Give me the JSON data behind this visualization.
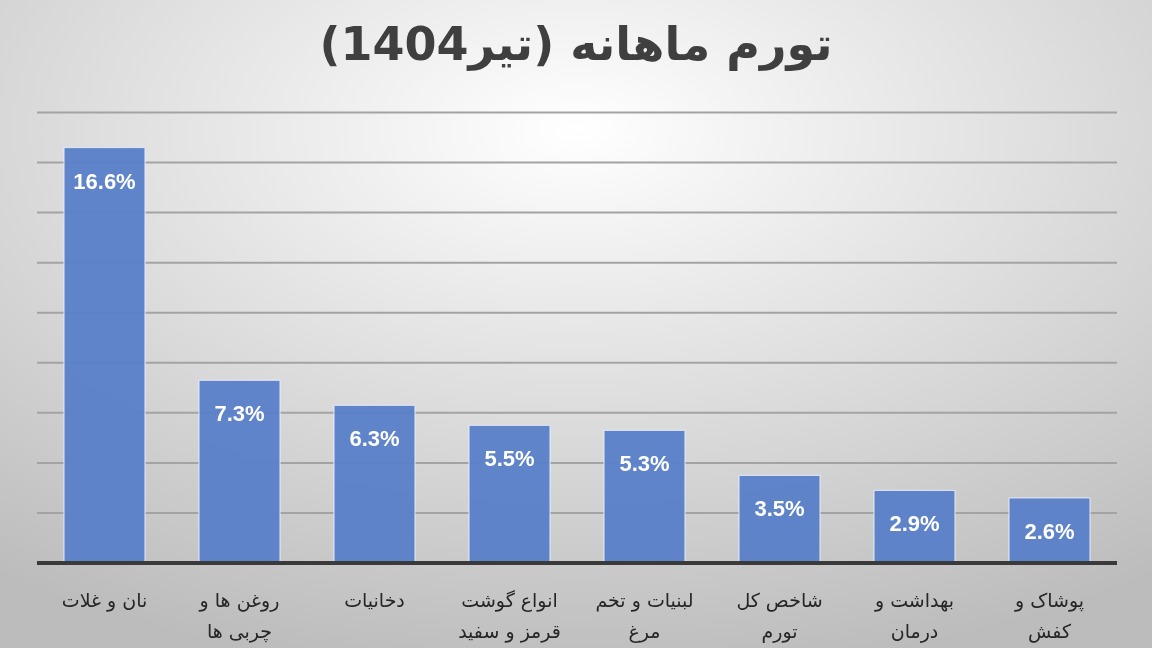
{
  "chart_data": {
    "type": "bar",
    "title": "تورم ماهانه (تیر1404)",
    "categories": [
      "نان و غلات",
      "روغن ها و چربی ها",
      "دخانیات",
      "انواع گوشت قرمز و سفید",
      "لبنیات و تخم مرغ",
      "شاخص کل تورم",
      "بهداشت و درمان",
      "پوشاک و کفش"
    ],
    "values": [
      16.6,
      7.3,
      6.3,
      5.5,
      5.3,
      3.5,
      2.9,
      2.6
    ],
    "color": "#5a80c8",
    "value_labels": [
      "16.6%",
      "7.3%",
      "6.3%",
      "5.5%",
      "5.3%",
      "3.5%",
      "2.9%",
      "2.6%"
    ],
    "ylim": [
      0,
      18
    ],
    "yticks": [
      {
        "value": 0,
        "label": null
      },
      {
        "value": 2,
        "label": null
      },
      {
        "value": 4,
        "label": null
      },
      {
        "value": 6,
        "label": null
      },
      {
        "value": 8,
        "label": null
      },
      {
        "value": 10,
        "label": null
      },
      {
        "value": 12,
        "label": null
      },
      {
        "value": 14,
        "label": null
      },
      {
        "value": 16,
        "label": null
      },
      {
        "value": 18,
        "label": null
      }
    ],
    "grid": "y",
    "tick_labels": "x"
  }
}
